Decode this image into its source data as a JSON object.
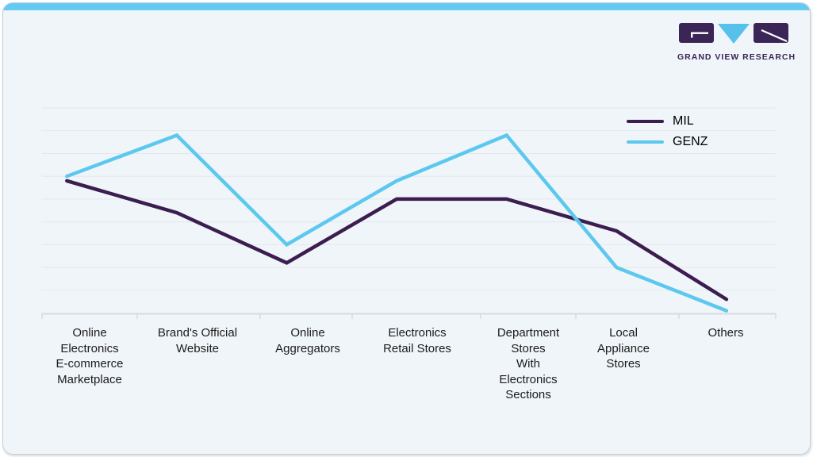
{
  "page": {
    "accent_bar_color": "#63cbf1",
    "card_background": "#f0f5f9",
    "card_border": "#c9cfd5"
  },
  "branding": {
    "logo_text": "GRAND VIEW RESEARCH",
    "logo_purple": "#3b2456",
    "logo_blue": "#56c2ec"
  },
  "chart_data": {
    "type": "line",
    "title": "",
    "xlabel": "",
    "ylabel": "",
    "categories": [
      "Online Electronics E-commerce Marketplace",
      "Brand's Official Website",
      "Online Aggregators",
      "Electronics Retail Stores",
      "Department Stores With Electronics Sections",
      "Local Appliance Stores",
      "Others"
    ],
    "series": [
      {
        "name": "MIL",
        "color": "#3c1d50",
        "values": [
          29,
          22,
          11,
          25,
          25,
          18,
          3
        ]
      },
      {
        "name": "GENZ",
        "color": "#5cc8f0",
        "values": [
          30,
          39,
          15,
          29,
          39,
          10,
          0.5
        ]
      }
    ],
    "ylim": [
      0,
      45
    ],
    "y_gridline_step": 5,
    "y_axis_labels_visible": false,
    "grid": "horizontal",
    "legend_position": "top-right"
  },
  "xaxis_display_labels": [
    "Online\nElectronics\nE-commerce\nMarketplace",
    "Brand's Official\nWebsite",
    "Online\nAggregators",
    "Electronics\nRetail Stores",
    "Department\nStores\nWith\nElectronics\nSections",
    "Local\nAppliance\nStores",
    "Others"
  ]
}
